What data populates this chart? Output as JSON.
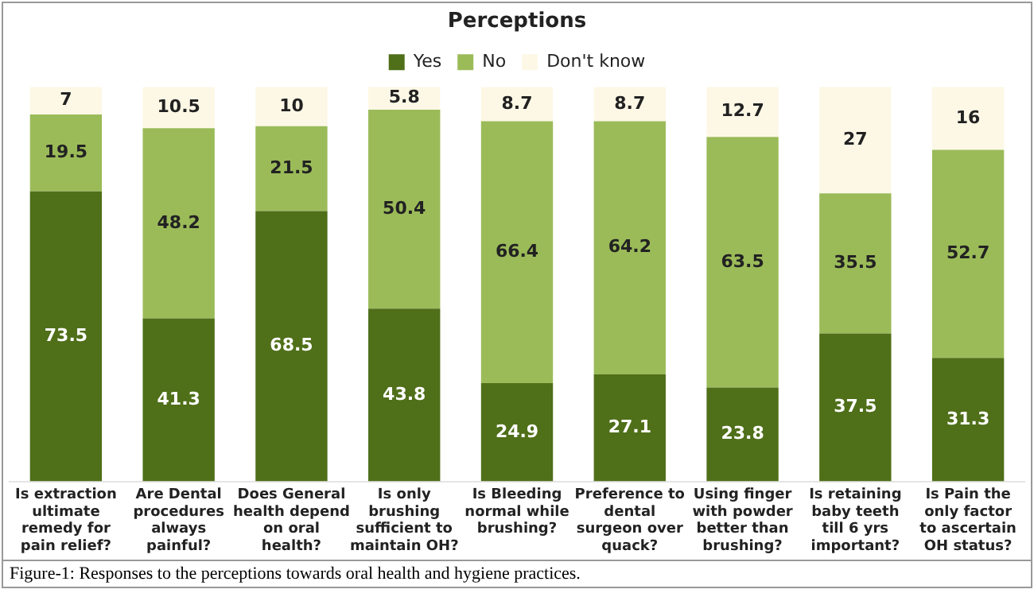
{
  "chart_data": {
    "type": "bar",
    "title": "Perceptions",
    "stacked": true,
    "data_labels": true,
    "legend": "top",
    "grid": false,
    "categories": [
      "Is extraction ultimate remedy for pain relief?",
      "Are Dental procedures always painful?",
      "Does General health depend on oral health?",
      "Is only brushing sufficient to maintain OH?",
      "Is Bleeding normal while brushing?",
      "Preference to dental surgeon over quack?",
      "Using finger with powder better than brushing?",
      "Is retaining baby teeth till 6 yrs important?",
      "Is Pain the only factor to ascertain OH status?"
    ],
    "series": [
      {
        "name": "Yes",
        "color": "#4f6f19",
        "values": [
          73.5,
          41.3,
          68.5,
          43.8,
          24.9,
          27.1,
          23.8,
          37.5,
          31.3
        ]
      },
      {
        "name": "No",
        "color": "#9bbb59",
        "values": [
          19.5,
          48.2,
          21.5,
          50.4,
          66.4,
          64.2,
          63.5,
          35.5,
          52.7
        ]
      },
      {
        "name": "Don't know",
        "color": "#fdf8e6",
        "values": [
          7,
          10.5,
          10,
          5.8,
          8.7,
          8.7,
          12.7,
          27,
          16
        ]
      }
    ],
    "annotations": [
      "Figure-1: Responses to the perceptions towards oral health and hygiene practices."
    ]
  }
}
